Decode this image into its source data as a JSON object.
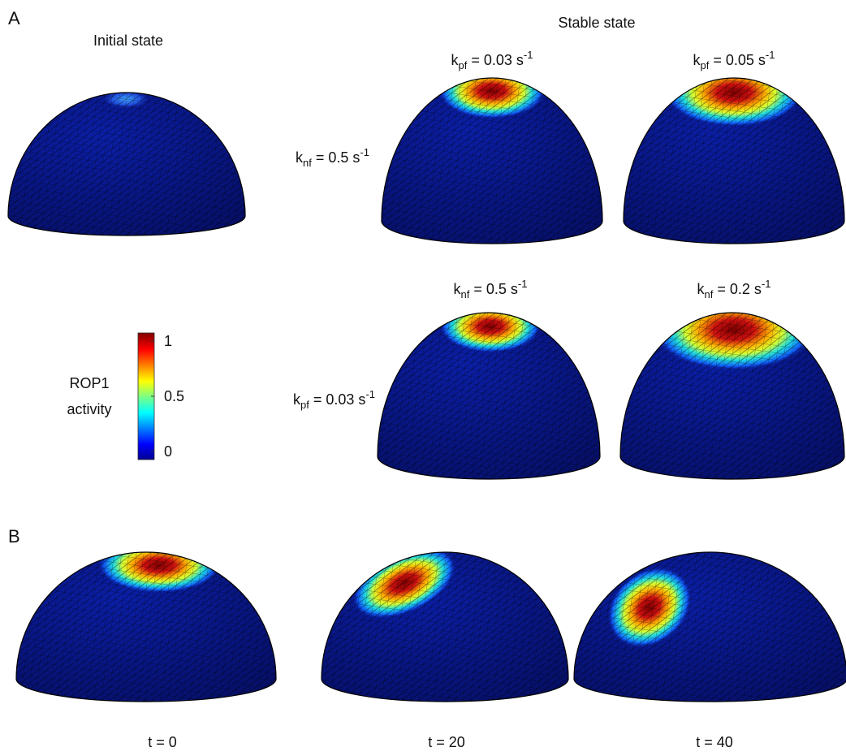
{
  "panel_a": {
    "label": "A",
    "initial_title": "Initial state",
    "stable_title": "Stable state",
    "row1": {
      "side_label": {
        "symbol": "k",
        "subscript": "nf",
        "rest": " = 0.5 s",
        "superscript": "-1"
      },
      "columns": [
        {
          "symbol": "k",
          "subscript": "pf",
          "rest": " = 0.03 s",
          "superscript": "-1"
        },
        {
          "symbol": "k",
          "subscript": "pf",
          "rest": " = 0.05 s",
          "superscript": "-1"
        }
      ]
    },
    "row2": {
      "side_label": {
        "symbol": "k",
        "subscript": "pf",
        "rest": " = 0.03 s",
        "superscript": "-1"
      },
      "columns": [
        {
          "symbol": "k",
          "subscript": "nf",
          "rest": " = 0.5 s",
          "superscript": "-1"
        },
        {
          "symbol": "k",
          "subscript": "nf",
          "rest": " = 0.2 s",
          "superscript": "-1"
        }
      ]
    },
    "colorbar": {
      "label": [
        "ROP1",
        "activity"
      ],
      "ticks": [
        0,
        0.5,
        1
      ]
    }
  },
  "panel_b": {
    "label": "B",
    "captions": [
      "t = 0",
      "t = 20",
      "t = 40"
    ]
  }
}
